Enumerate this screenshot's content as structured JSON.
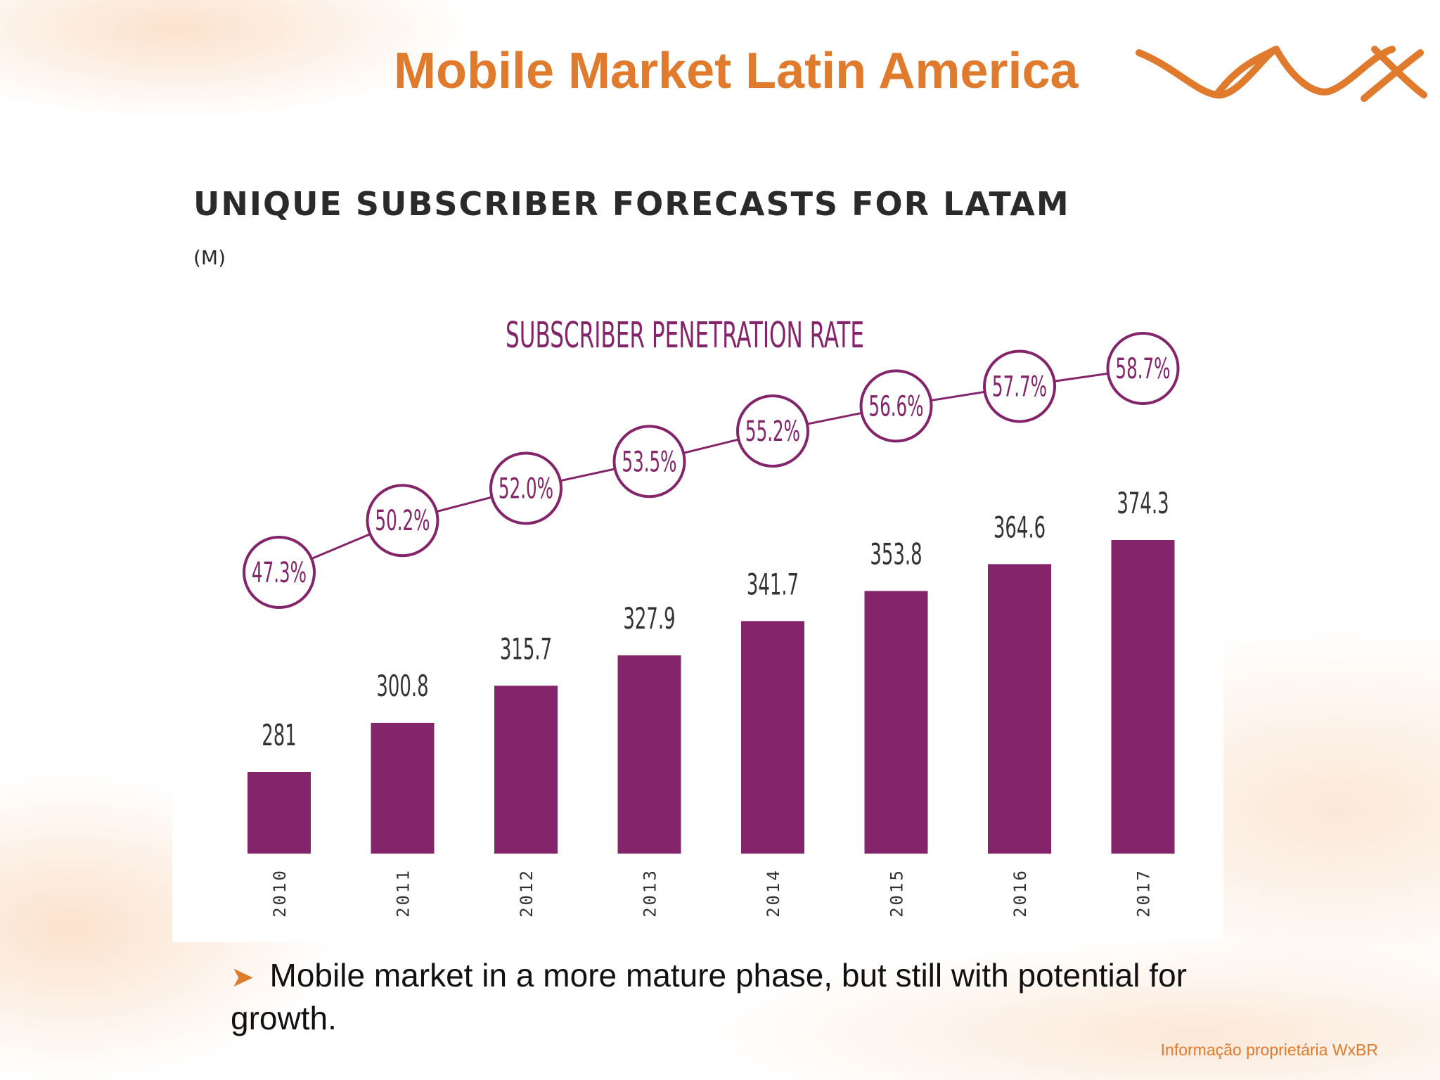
{
  "slide": {
    "title": "Mobile Market Latin America",
    "bullet_text": "Mobile market in a more mature phase, but still with potential for growth.",
    "bullet_icon": "arrow-bullet-icon",
    "footer_note": "Informação proprietária WxBR",
    "accent_color": "#e07a2c"
  },
  "chart_data": {
    "type": "bar",
    "title": "UNIQUE SUBSCRIBER FORECASTS FOR LATAM",
    "subtitle": "(M)",
    "categories": [
      "2010",
      "2011",
      "2012",
      "2013",
      "2014",
      "2015",
      "2016",
      "2017"
    ],
    "series": [
      {
        "values": [
          281,
          300.8,
          315.7,
          327.9,
          341.7,
          353.8,
          364.6,
          374.3
        ],
        "labels": [
          "281",
          "300.8",
          "315.7",
          "327.9",
          "341.7",
          "353.8",
          "364.6",
          "374.3"
        ],
        "color": "#84246a"
      },
      {
        "name": "SUBSCRIBER PENETRATION RATE",
        "type": "line",
        "values": [
          47.3,
          50.2,
          52.0,
          53.5,
          55.2,
          56.6,
          57.7,
          58.7
        ],
        "labels": [
          "47.3%",
          "50.2%",
          "52.0%",
          "53.5%",
          "55.2%",
          "56.6%",
          "57.7%",
          "58.7%"
        ],
        "color": "#84246a"
      }
    ],
    "grid": false
  }
}
